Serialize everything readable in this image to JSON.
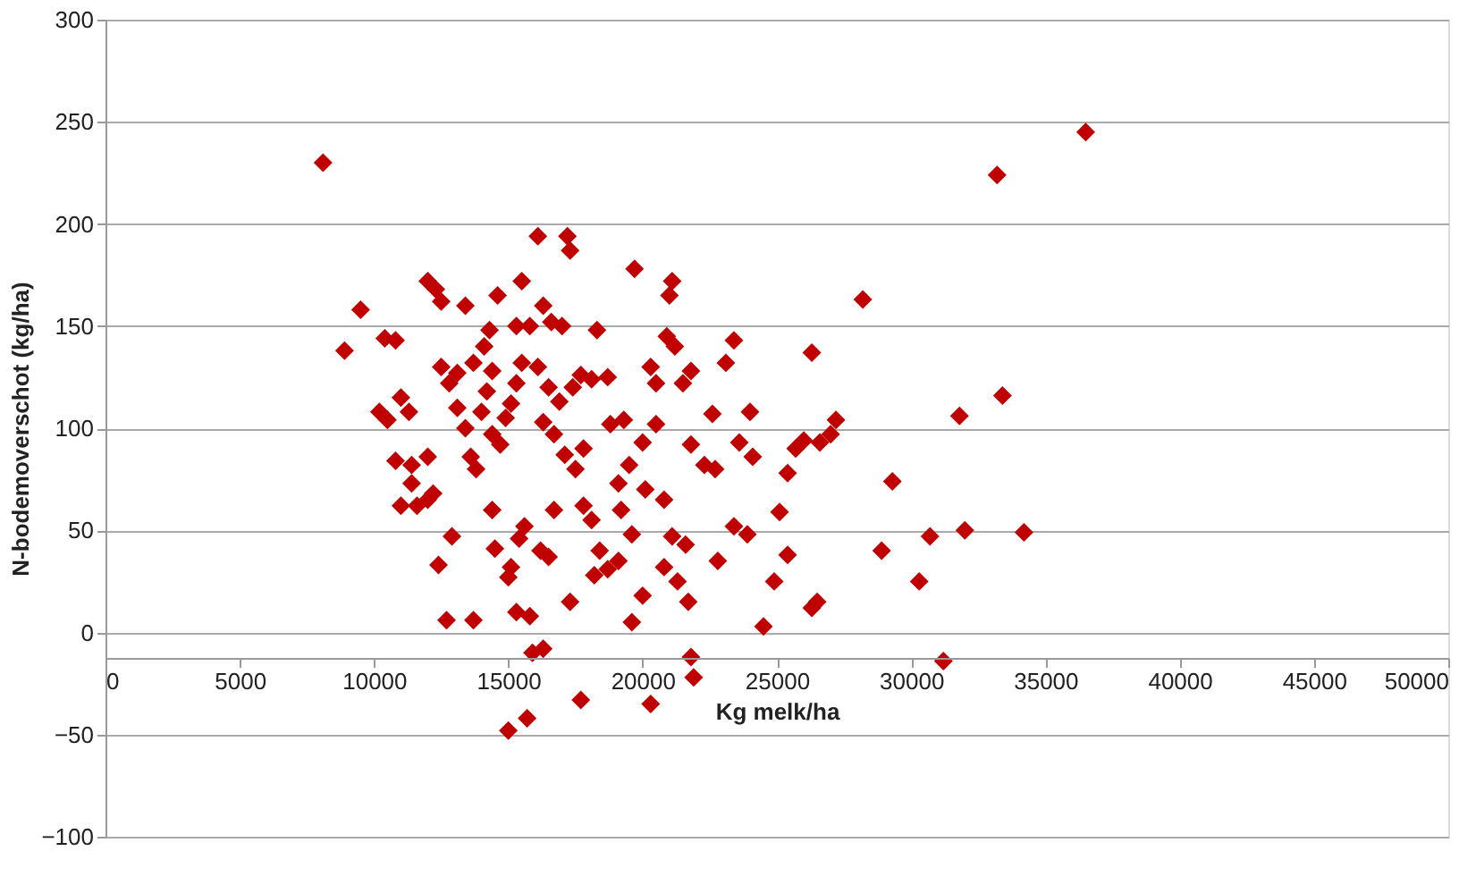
{
  "chart_data": {
    "type": "scatter",
    "xlabel": "Kg melk/ha",
    "ylabel": "N-bodemoverschot (kg/ha)",
    "xlim": [
      0,
      50000
    ],
    "xticks": [
      0,
      5000,
      10000,
      15000,
      20000,
      25000,
      30000,
      35000,
      40000,
      45000,
      50000
    ],
    "ylim": [
      -100,
      300
    ],
    "yticks": [
      -100,
      -50,
      0,
      50,
      100,
      150,
      200,
      250,
      300
    ],
    "grid": "y",
    "marker": "diamond",
    "series": [
      {
        "color": "#c00000",
        "x": [
          8100,
          8900,
          9500,
          10400,
          10800,
          10200,
          10500,
          11000,
          11300,
          10800,
          11400,
          11000,
          11600,
          11400,
          12000,
          12200,
          12000,
          12400,
          12700,
          13700,
          12900,
          12000,
          12300,
          12500,
          13400,
          12500,
          12800,
          13100,
          13400,
          13600,
          13800,
          13100,
          13700,
          14100,
          14300,
          14600,
          14400,
          14200,
          14000,
          14400,
          14700,
          14900,
          15100,
          15300,
          15500,
          15300,
          15800,
          15500,
          14400,
          14500,
          15100,
          15400,
          15600,
          15000,
          15300,
          15800,
          15000,
          15700,
          15900,
          16300,
          16100,
          17200,
          17300,
          16300,
          16600,
          17000,
          16100,
          16500,
          16900,
          16300,
          16700,
          17100,
          17500,
          17800,
          17400,
          17700,
          18100,
          18700,
          18300,
          17300,
          17700,
          16700,
          16200,
          16500,
          17800,
          18100,
          18400,
          18700,
          18200,
          19100,
          19200,
          19600,
          19100,
          19600,
          19700,
          20500,
          20300,
          20900,
          21100,
          21000,
          21200,
          21800,
          21500,
          20500,
          20000,
          19500,
          20100,
          20800,
          21100,
          21600,
          20800,
          21300,
          20000,
          20300,
          21800,
          21900,
          21700,
          21800,
          22300,
          22700,
          22600,
          23100,
          23400,
          24000,
          23600,
          24100,
          23400,
          23900,
          24500,
          24900,
          25400,
          22800,
          25100,
          25400,
          25700,
          26300,
          26000,
          26600,
          27000,
          27200,
          26300,
          26500,
          28200,
          28900,
          29300,
          30300,
          30700,
          31200,
          31800,
          32000,
          33400,
          34200,
          33200,
          36500,
          19300,
          18800
        ],
        "values": [
          230,
          138,
          158,
          144,
          143,
          108,
          104,
          115,
          108,
          84,
          82,
          62,
          62,
          73,
          86,
          68,
          65,
          33,
          6,
          6,
          47,
          172,
          168,
          162,
          160,
          130,
          122,
          110,
          100,
          86,
          80,
          127,
          132,
          140,
          148,
          165,
          128,
          118,
          108,
          97,
          92,
          105,
          112,
          122,
          132,
          150,
          150,
          172,
          60,
          41,
          32,
          46,
          52,
          27,
          10,
          8,
          -48,
          -42,
          -10,
          -8,
          194,
          194,
          187,
          160,
          152,
          150,
          130,
          120,
          113,
          103,
          97,
          87,
          80,
          90,
          120,
          126,
          124,
          125,
          148,
          15,
          -33,
          60,
          40,
          37,
          62,
          55,
          40,
          31,
          28,
          73,
          60,
          48,
          35,
          5,
          178,
          122,
          130,
          145,
          172,
          165,
          140,
          128,
          122,
          102,
          93,
          82,
          70,
          65,
          47,
          43,
          32,
          25,
          18,
          -35,
          -12,
          -22,
          15,
          92,
          82,
          80,
          107,
          132,
          143,
          108,
          93,
          86,
          52,
          48,
          3,
          25,
          38,
          35,
          59,
          78,
          90,
          137,
          94,
          93,
          97,
          104,
          12,
          15,
          163,
          40,
          74,
          25,
          47,
          -14,
          106,
          50,
          116,
          49,
          224,
          245,
          104,
          102
        ]
      }
    ]
  }
}
